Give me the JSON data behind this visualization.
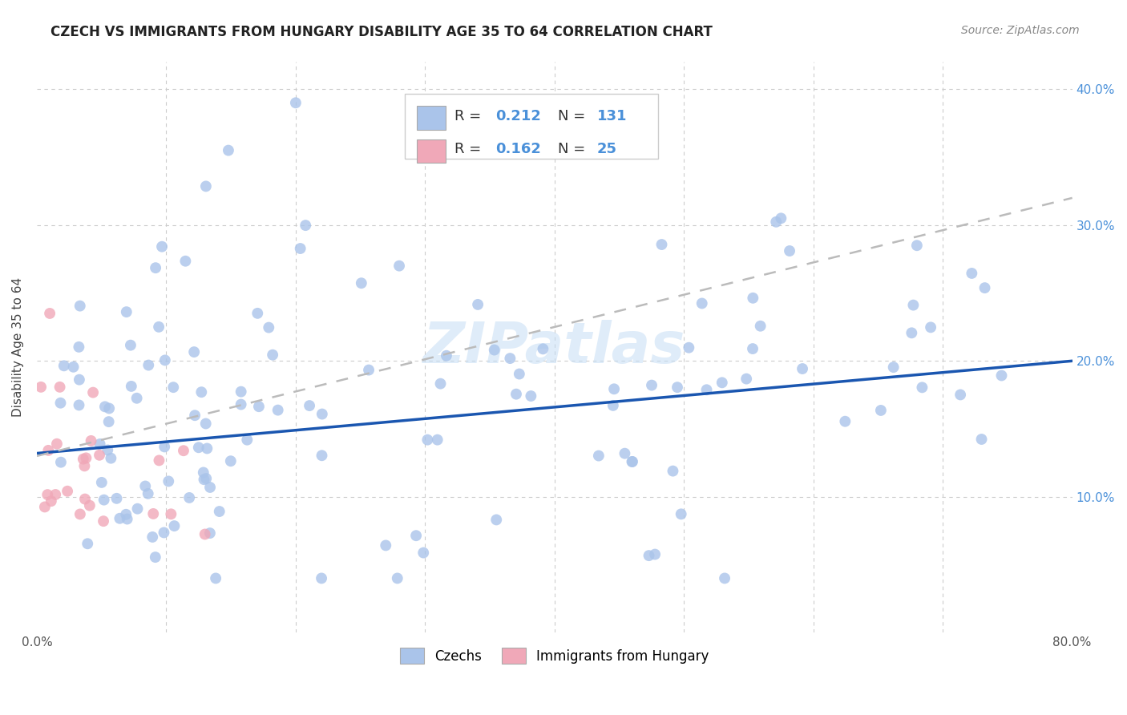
{
  "title": "CZECH VS IMMIGRANTS FROM HUNGARY DISABILITY AGE 35 TO 64 CORRELATION CHART",
  "source": "Source: ZipAtlas.com",
  "ylabel": "Disability Age 35 to 64",
  "xlim": [
    0.0,
    0.8
  ],
  "ylim": [
    0.0,
    0.42
  ],
  "legend_r1": "0.212",
  "legend_n1": "131",
  "legend_r2": "0.162",
  "legend_n2": "25",
  "czech_color": "#aac4ea",
  "hungary_color": "#f0a8b8",
  "czech_line_color": "#1a56b0",
  "hungary_line_color": "#d05060",
  "background_color": "#ffffff",
  "grid_color": "#cccccc",
  "watermark": "ZIPatlas",
  "czech_seed": 17,
  "hungary_seed": 99
}
